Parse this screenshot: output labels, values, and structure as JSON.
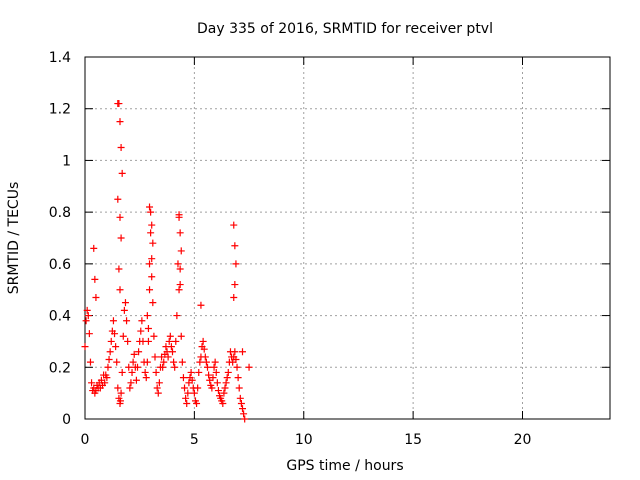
{
  "chart_data": {
    "type": "scatter",
    "title": "Day 335 of 2016, SRMTID for receiver ptvl",
    "xlabel": "GPS time / hours",
    "ylabel": "SRMTID / TECUs",
    "xlim": [
      0,
      24
    ],
    "ylim": [
      0,
      1.4
    ],
    "xticks": [
      0,
      5,
      10,
      15,
      20
    ],
    "xtick_labels": [
      "0",
      "5",
      "10",
      "15",
      "20"
    ],
    "yticks": [
      0,
      0.2,
      0.4,
      0.6,
      0.8,
      1.0,
      1.2,
      1.4
    ],
    "ytick_labels": [
      "0",
      "0.2",
      "0.4",
      "0.6",
      "0.8",
      "1",
      "1.2",
      "1.4"
    ],
    "grid": true,
    "marker": "+",
    "color": "#ff0000",
    "series": [
      {
        "name": "SRMTID",
        "x": [
          0.0,
          0.05,
          0.1,
          0.15,
          0.2,
          0.25,
          0.3,
          0.35,
          0.4,
          0.45,
          0.5,
          0.55,
          0.6,
          0.65,
          0.7,
          0.75,
          0.8,
          0.85,
          0.9,
          0.95,
          1.0,
          1.05,
          1.1,
          1.15,
          1.2,
          1.25,
          1.3,
          1.35,
          1.4,
          1.45,
          1.5,
          1.55,
          1.6,
          1.62,
          1.65,
          1.7,
          1.75,
          1.8,
          1.85,
          1.9,
          1.95,
          2.0,
          2.05,
          2.1,
          2.15,
          2.2,
          2.25,
          2.3,
          2.35,
          2.4,
          2.45,
          2.5,
          2.55,
          2.6,
          2.65,
          2.7,
          2.75,
          2.8,
          2.85,
          2.9,
          2.95,
          3.0,
          3.05,
          3.1,
          3.15,
          3.2,
          3.25,
          3.3,
          3.35,
          3.4,
          3.45,
          3.5,
          3.55,
          3.6,
          3.65,
          3.7,
          3.75,
          3.8,
          3.85,
          3.9,
          3.95,
          4.0,
          4.05,
          4.1,
          4.15,
          4.2,
          4.25,
          4.3,
          4.35,
          4.4,
          4.45,
          4.5,
          4.55,
          4.6,
          4.65,
          4.7,
          4.75,
          4.8,
          4.85,
          4.9,
          4.95,
          5.0,
          5.05,
          5.1,
          5.15,
          5.2,
          5.25,
          5.3,
          5.35,
          5.4,
          5.45,
          5.5,
          5.55,
          5.6,
          5.65,
          5.7,
          5.75,
          5.8,
          5.85,
          5.9,
          5.95,
          6.0,
          6.05,
          6.1,
          6.15,
          6.2,
          6.25,
          6.3,
          6.35,
          6.4,
          6.45,
          6.5,
          6.55,
          6.6,
          6.65,
          6.7,
          6.75,
          6.8,
          6.85,
          6.9,
          6.95,
          7.0,
          7.05,
          7.1,
          7.15,
          7.2,
          7.25,
          7.3,
          7.5,
          0.4,
          0.45,
          0.5,
          1.5,
          1.55,
          1.6,
          1.65,
          1.7,
          1.5,
          1.6,
          1.65,
          2.95,
          3.0,
          3.05,
          3.1,
          2.95,
          3.05,
          4.3,
          4.35,
          4.4,
          4.35,
          4.3,
          5.3,
          6.8,
          6.85,
          6.9,
          6.85,
          6.8,
          2.85,
          2.9,
          1.55,
          1.6,
          7.2
        ],
        "y": [
          0.28,
          0.38,
          0.42,
          0.4,
          0.33,
          0.22,
          0.14,
          0.11,
          0.12,
          0.1,
          0.11,
          0.13,
          0.12,
          0.14,
          0.12,
          0.15,
          0.13,
          0.17,
          0.14,
          0.17,
          0.16,
          0.2,
          0.23,
          0.26,
          0.3,
          0.34,
          0.38,
          0.33,
          0.28,
          0.22,
          0.12,
          0.08,
          0.06,
          0.07,
          0.1,
          0.18,
          0.32,
          0.42,
          0.45,
          0.38,
          0.3,
          0.2,
          0.12,
          0.14,
          0.18,
          0.22,
          0.25,
          0.2,
          0.15,
          0.2,
          0.26,
          0.3,
          0.34,
          0.38,
          0.3,
          0.22,
          0.18,
          0.16,
          0.22,
          0.3,
          0.5,
          0.72,
          0.62,
          0.45,
          0.32,
          0.24,
          0.18,
          0.12,
          0.1,
          0.14,
          0.2,
          0.24,
          0.2,
          0.22,
          0.25,
          0.28,
          0.26,
          0.24,
          0.3,
          0.32,
          0.28,
          0.26,
          0.22,
          0.2,
          0.3,
          0.4,
          0.6,
          0.78,
          0.52,
          0.32,
          0.22,
          0.16,
          0.12,
          0.08,
          0.06,
          0.1,
          0.14,
          0.16,
          0.18,
          0.15,
          0.12,
          0.1,
          0.07,
          0.06,
          0.12,
          0.18,
          0.22,
          0.24,
          0.28,
          0.3,
          0.27,
          0.24,
          0.22,
          0.2,
          0.17,
          0.15,
          0.13,
          0.12,
          0.16,
          0.2,
          0.22,
          0.18,
          0.14,
          0.11,
          0.09,
          0.08,
          0.07,
          0.06,
          0.1,
          0.12,
          0.14,
          0.16,
          0.18,
          0.22,
          0.26,
          0.24,
          0.22,
          0.24,
          0.26,
          0.23,
          0.2,
          0.16,
          0.12,
          0.08,
          0.06,
          0.04,
          0.02,
          0.0,
          0.2,
          0.66,
          0.54,
          0.47,
          1.22,
          1.22,
          1.15,
          1.05,
          0.95,
          0.85,
          0.78,
          0.7,
          0.82,
          0.8,
          0.75,
          0.68,
          0.6,
          0.55,
          0.79,
          0.72,
          0.65,
          0.58,
          0.5,
          0.44,
          0.75,
          0.67,
          0.6,
          0.52,
          0.47,
          0.4,
          0.35,
          0.58,
          0.5,
          0.26
        ]
      }
    ]
  }
}
